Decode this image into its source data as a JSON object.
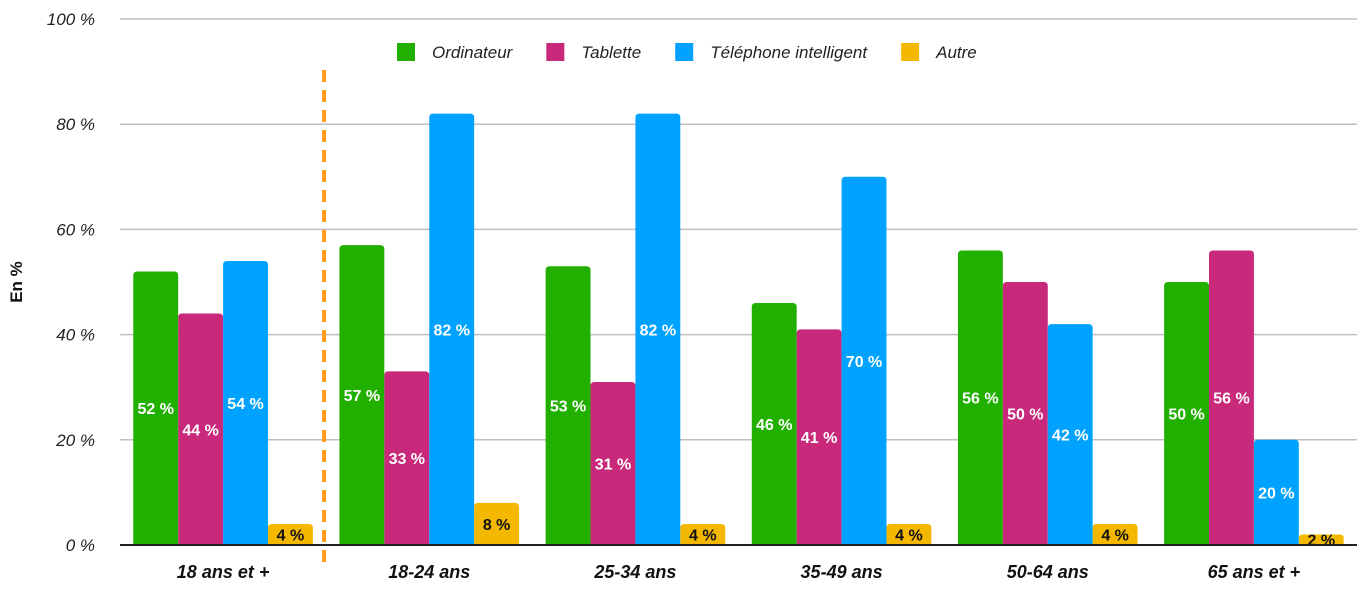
{
  "chart_data": {
    "type": "bar",
    "categories": [
      "18 ans et +",
      "18-24 ans",
      "25-34 ans",
      "35-49 ans",
      "50-64 ans",
      "65 ans et +"
    ],
    "series": [
      {
        "name": "Ordinateur",
        "values": [
          52,
          57,
          53,
          46,
          56,
          50
        ],
        "color": "#22b000",
        "labels": [
          "52 %",
          "57 %",
          "53 %",
          "46 %",
          "56 %",
          "50 %"
        ]
      },
      {
        "name": "Tablette",
        "values": [
          44,
          33,
          31,
          41,
          50,
          56
        ],
        "color": "#c9297a",
        "labels": [
          "44 %",
          "33 %",
          "31 %",
          "41 %",
          "50 %",
          "56 %"
        ]
      },
      {
        "name": "Téléphone intelligent",
        "values": [
          54,
          82,
          82,
          70,
          42,
          20
        ],
        "color": "#00a2ff",
        "labels": [
          "54 %",
          "82 %",
          "82 %",
          "70 %",
          "42 %",
          "20 %"
        ]
      },
      {
        "name": "Autre",
        "values": [
          4,
          8,
          4,
          4,
          4,
          2
        ],
        "color": "#f5b800",
        "labels": [
          "4 %",
          "8 %",
          "4 %",
          "4 %",
          "4 %",
          "2 %"
        ]
      }
    ],
    "ylabel": "En %",
    "xlabel": "",
    "ylim": [
      0,
      100
    ],
    "yticks": [
      0,
      20,
      40,
      60,
      80,
      100
    ],
    "ytick_labels": [
      "0 %",
      "20 %",
      "40 %",
      "60 %",
      "80 %",
      "100 %"
    ],
    "grid": true,
    "legend": "top",
    "separator_color": "#ff9a1a",
    "gridline_color": "#bfbfbf"
  }
}
